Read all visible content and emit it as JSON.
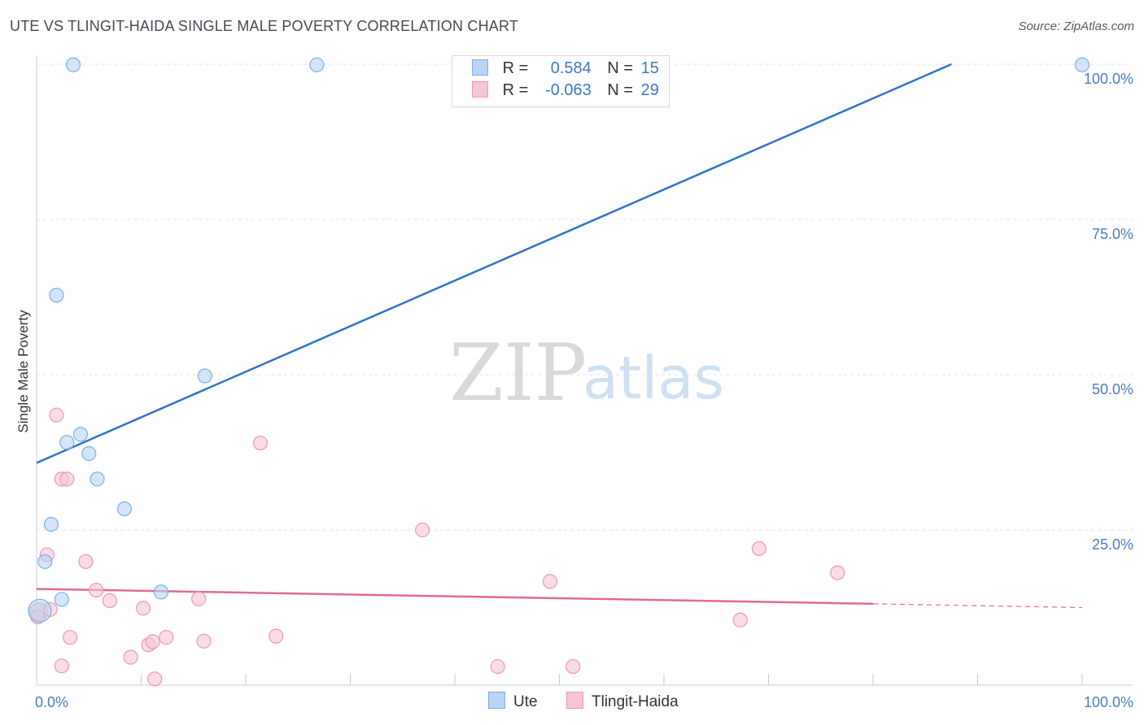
{
  "title": "UTE VS TLINGIT-HAIDA SINGLE MALE POVERTY CORRELATION CHART",
  "source": "Source: ZipAtlas.com",
  "colors": {
    "ute_fill": "#b9d4f4",
    "ute_stroke": "#7faee3",
    "ute_line": "#2e73c8",
    "tlingit_fill": "#f8c5d5",
    "tlingit_stroke": "#ea9ab4",
    "tlingit_line": "#e06a95",
    "grid": "#e3e3e3",
    "axis_text": "#4a7cc4"
  },
  "legend": {
    "ute": {
      "r_label": "R =",
      "r_value": "0.584",
      "n_label": "N =",
      "n_value": "15"
    },
    "tlingit": {
      "r_label": "R =",
      "r_value": "-0.063",
      "n_label": "N =",
      "n_value": "29"
    }
  },
  "bottom_legend": {
    "ute": "Ute",
    "tlingit": "Tlingit-Haida"
  },
  "watermark": {
    "zip": "ZIP",
    "atlas": "atlas"
  },
  "chart_data": {
    "type": "scatter",
    "title": "UTE VS TLINGIT-HAIDA SINGLE MALE POVERTY CORRELATION CHART",
    "xlabel": "",
    "ylabel": "Single Male Poverty",
    "xlim": [
      0,
      100
    ],
    "ylim": [
      0,
      100
    ],
    "x_tick_labels": [
      "0.0%",
      "100.0%"
    ],
    "y_ticks": [
      {
        "value": 100,
        "label": "100.0%"
      },
      {
        "value": 75,
        "label": "75.0%"
      },
      {
        "value": 50,
        "label": "50.0%"
      },
      {
        "value": 25,
        "label": "25.0%"
      }
    ],
    "series": [
      {
        "name": "Ute",
        "points": [
          {
            "x": 3.5,
            "y": 99.9
          },
          {
            "x": 26.8,
            "y": 99.9
          },
          {
            "x": 100.0,
            "y": 99.9
          },
          {
            "x": 1.9,
            "y": 62.8
          },
          {
            "x": 16.1,
            "y": 49.8
          },
          {
            "x": 4.2,
            "y": 40.4
          },
          {
            "x": 2.9,
            "y": 39.1
          },
          {
            "x": 5.0,
            "y": 37.3
          },
          {
            "x": 5.8,
            "y": 33.2
          },
          {
            "x": 8.4,
            "y": 28.4
          },
          {
            "x": 1.4,
            "y": 25.9
          },
          {
            "x": 0.8,
            "y": 19.9
          },
          {
            "x": 11.9,
            "y": 15.0
          },
          {
            "x": 2.4,
            "y": 13.8
          },
          {
            "x": 0.3,
            "y": 12.0
          }
        ],
        "trend": {
          "x0": 0,
          "y0": 35.8,
          "x1": 87.5,
          "y1": 100.0
        }
      },
      {
        "name": "Tlingit-Haida",
        "points": [
          {
            "x": 0.2,
            "y": 11.8
          },
          {
            "x": 1.3,
            "y": 12.2
          },
          {
            "x": 1.9,
            "y": 43.5
          },
          {
            "x": 2.4,
            "y": 33.2
          },
          {
            "x": 2.9,
            "y": 33.2
          },
          {
            "x": 1.0,
            "y": 21.0
          },
          {
            "x": 4.7,
            "y": 19.9
          },
          {
            "x": 5.7,
            "y": 15.3
          },
          {
            "x": 7.0,
            "y": 13.6
          },
          {
            "x": 3.2,
            "y": 7.7
          },
          {
            "x": 2.4,
            "y": 3.1
          },
          {
            "x": 10.2,
            "y": 12.4
          },
          {
            "x": 10.7,
            "y": 6.5
          },
          {
            "x": 11.1,
            "y": 7.0
          },
          {
            "x": 12.4,
            "y": 7.7
          },
          {
            "x": 9.0,
            "y": 4.5
          },
          {
            "x": 11.3,
            "y": 1.0
          },
          {
            "x": 15.5,
            "y": 13.9
          },
          {
            "x": 16.0,
            "y": 7.1
          },
          {
            "x": 21.4,
            "y": 39.0
          },
          {
            "x": 22.9,
            "y": 7.9
          },
          {
            "x": 36.9,
            "y": 25.0
          },
          {
            "x": 44.1,
            "y": 3.0
          },
          {
            "x": 49.1,
            "y": 16.7
          },
          {
            "x": 51.3,
            "y": 3.0
          },
          {
            "x": 67.3,
            "y": 10.5
          },
          {
            "x": 69.1,
            "y": 22.0
          },
          {
            "x": 76.6,
            "y": 18.1
          },
          {
            "x": 0.1,
            "y": 11.0
          }
        ],
        "trend": {
          "x0": 0,
          "y0": 15.5,
          "x1": 80.0,
          "y1": 13.1
        },
        "trend_dashed": {
          "x0": 80.0,
          "y0": 13.1,
          "x1": 100.0,
          "y1": 12.5
        }
      }
    ]
  }
}
